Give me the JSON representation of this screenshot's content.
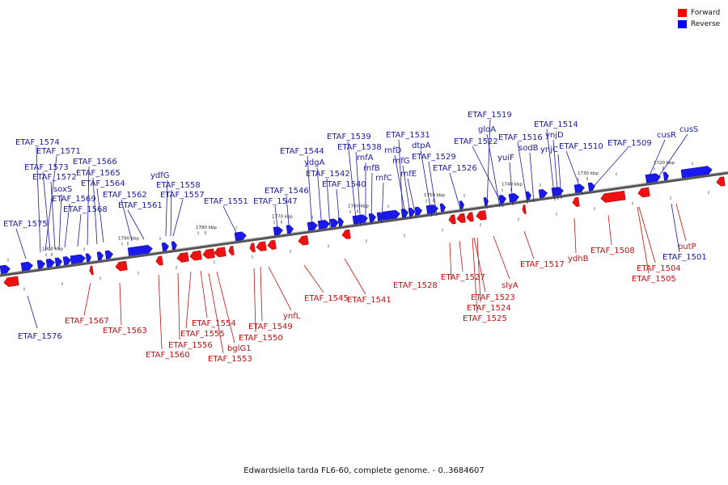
{
  "caption": "Edwardsiella tarda FL6-60, complete genome. - 0..3684607",
  "legend": [
    {
      "label": "Forward",
      "color": "#ff0000"
    },
    {
      "label": "Reverse",
      "color": "#0000ff"
    }
  ],
  "colors": {
    "forward": "#ee1111",
    "reverse": "#1a1aee",
    "forward_text": "#c01010",
    "reverse_text": "#1a1aa0",
    "backbone": "#808080"
  },
  "ticks": [
    "1720 kbp",
    "1730 kbp",
    "1740 kbp",
    "1750 kbp",
    "1760 kbp",
    "1770 kbp",
    "1780 kbp",
    "1790 kbp",
    "1800 kbp"
  ],
  "reverse_labels": [
    "ETAF_1574",
    "ETAF_1571",
    "ETAF_1573",
    "ETAF_1572",
    "soxS",
    "ETAF_1569",
    "ETAF_1568",
    "ETAF_1566",
    "ETAF_1565",
    "ETAF_1564",
    "ETAF_1562",
    "ETAF_1561",
    "ydfG",
    "ETAF_1558",
    "ETAF_1557",
    "ETAF_1575",
    "ETAF_1576",
    "ETAF_1551",
    "ETAF_1547",
    "ETAF_1546",
    "ETAF_1544",
    "ydgA",
    "ETAF_1542",
    "ETAF_1540",
    "ETAF_1539",
    "ETAF_1538",
    "rnfA",
    "rnfB",
    "rnfC",
    "ETAF_1531",
    "rnfD",
    "dtpA",
    "rnfG",
    "rnfE",
    "ETAF_1529",
    "ETAF_1526",
    "ETAF_1519",
    "gloA",
    "ETAF_1522",
    "yuiF",
    "ETAF_1516",
    "sodB",
    "ETAF_1514",
    "ynjD",
    "ynjC",
    "ETAF_1510",
    "ETAF_1509",
    "cusR",
    "cusS",
    "ETAF_1501"
  ],
  "forward_labels": [
    "ETAF_1567",
    "ETAF_1563",
    "ETAF_1560",
    "ETAF_1556",
    "ETAF_1555",
    "ETAF_1554",
    "bglG1",
    "ETAF_1553",
    "ETAF_1550",
    "ETAF_1549",
    "ynfL",
    "ETAF_1545",
    "ETAF_1541",
    "ETAF_1528",
    "ETAF_1527",
    "slyA",
    "ETAF_1523",
    "ETAF_1524",
    "ETAF_1525",
    "ETAF_1517",
    "ydhB",
    "ETAF_1508",
    "ETAF_1504",
    "ETAF_1505",
    "putP"
  ]
}
